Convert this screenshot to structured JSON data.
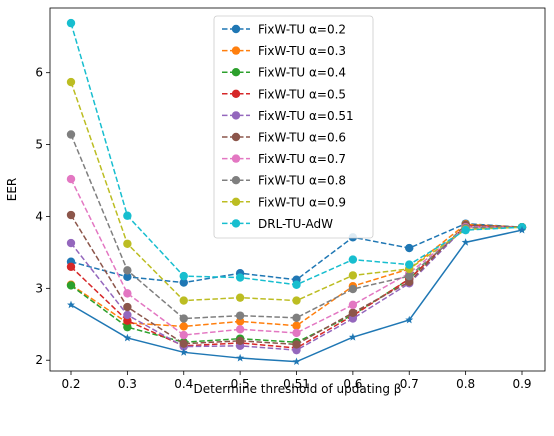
{
  "chart_data": {
    "type": "line",
    "title": "",
    "xlabel": "Determine threshold of updating β",
    "ylabel": "EER",
    "categories": [
      "0.2",
      "0.3",
      "0.4",
      "0.5",
      "0.51",
      "0.6",
      "0.7",
      "0.8",
      "0.9"
    ],
    "yticks": [
      2,
      3,
      4,
      5,
      6
    ],
    "ylim": [
      1.85,
      6.9
    ],
    "grid": false,
    "legend_position": "top-center",
    "series": [
      {
        "name": "FixW-TU α=0.2",
        "color": "#1f77b4",
        "marker": "circle",
        "dashed": true,
        "values": [
          3.37,
          3.16,
          3.08,
          3.21,
          3.12,
          3.71,
          3.56,
          3.9,
          3.85
        ]
      },
      {
        "name": "FixW-TU α=0.3",
        "color": "#ff7f0e",
        "marker": "circle",
        "dashed": true,
        "values": [
          3.05,
          2.52,
          2.47,
          2.54,
          2.48,
          3.03,
          3.27,
          3.89,
          3.85
        ]
      },
      {
        "name": "FixW-TU α=0.4",
        "color": "#2ca02c",
        "marker": "circle",
        "dashed": true,
        "values": [
          3.04,
          2.46,
          2.25,
          2.3,
          2.25,
          2.63,
          3.13,
          3.88,
          3.85
        ]
      },
      {
        "name": "FixW-TU α=0.5",
        "color": "#d62728",
        "marker": "circle",
        "dashed": true,
        "values": [
          3.3,
          2.55,
          2.2,
          2.24,
          2.17,
          2.62,
          3.13,
          3.87,
          3.85
        ]
      },
      {
        "name": "FixW-TU α=0.51",
        "color": "#9467bd",
        "marker": "circle",
        "dashed": true,
        "values": [
          3.63,
          2.63,
          2.19,
          2.2,
          2.14,
          2.58,
          3.07,
          3.86,
          3.85
        ]
      },
      {
        "name": "FixW-TU α=0.6",
        "color": "#8c564b",
        "marker": "circle",
        "dashed": true,
        "values": [
          4.02,
          2.74,
          2.23,
          2.27,
          2.22,
          2.66,
          3.09,
          3.88,
          3.85
        ]
      },
      {
        "name": "FixW-TU α=0.7",
        "color": "#e377c2",
        "marker": "circle",
        "dashed": true,
        "values": [
          4.52,
          2.93,
          2.35,
          2.43,
          2.38,
          2.77,
          3.21,
          3.85,
          3.85
        ]
      },
      {
        "name": "FixW-TU α=0.8",
        "color": "#7f7f7f",
        "marker": "circle",
        "dashed": true,
        "values": [
          5.14,
          3.25,
          2.58,
          2.62,
          2.59,
          2.99,
          3.17,
          3.84,
          3.85
        ]
      },
      {
        "name": "FixW-TU α=0.9",
        "color": "#bcbd22",
        "marker": "circle",
        "dashed": true,
        "values": [
          5.87,
          3.62,
          2.83,
          2.87,
          2.83,
          3.18,
          3.27,
          3.82,
          3.85
        ]
      },
      {
        "name": "DRL-TU-AdW",
        "color": "#17becf",
        "marker": "circle",
        "dashed": true,
        "values": [
          6.69,
          4.01,
          3.17,
          3.15,
          3.05,
          3.4,
          3.33,
          3.81,
          3.85
        ]
      },
      {
        "name": "",
        "color": "#1f77b4",
        "marker": "star",
        "dashed": false,
        "values": [
          2.77,
          2.31,
          2.11,
          2.03,
          1.98,
          2.32,
          2.56,
          3.64,
          3.81
        ]
      }
    ]
  }
}
